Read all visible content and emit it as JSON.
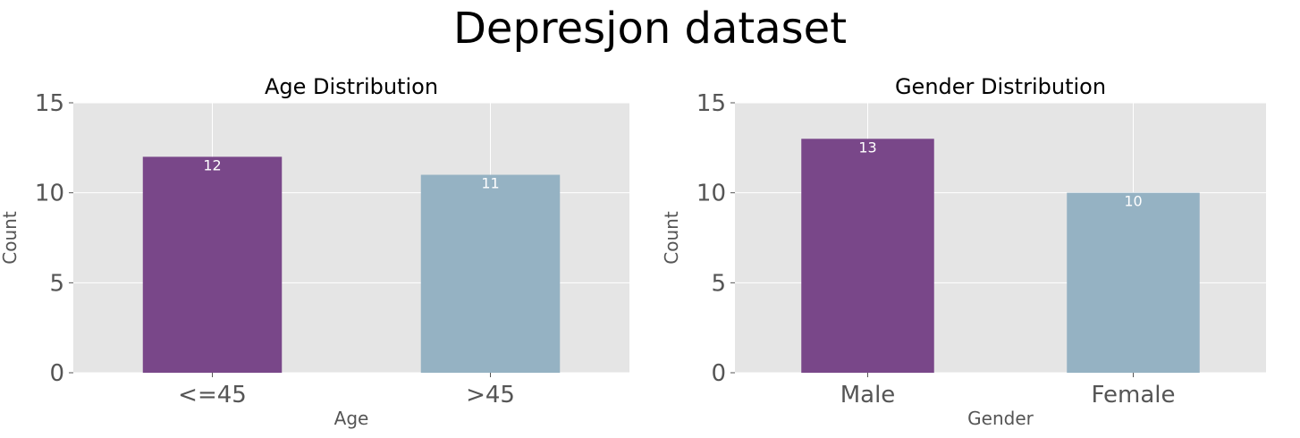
{
  "title": "Depresjon dataset",
  "colors": {
    "bar1": "#794789",
    "bar2": "#95b2c3",
    "panel_bg": "#e5e5e5",
    "grid": "#ffffff",
    "tick_text": "#555555"
  },
  "chart_data": [
    {
      "type": "bar",
      "title": "Age Distribution",
      "xlabel": "Age",
      "ylabel": "Count",
      "categories": [
        "<=45",
        ">45"
      ],
      "values": [
        12,
        11
      ],
      "ylim": [
        0,
        15
      ],
      "yticks": [
        0,
        5,
        10,
        15
      ],
      "grid": true
    },
    {
      "type": "bar",
      "title": "Gender Distribution",
      "xlabel": "Gender",
      "ylabel": "Count",
      "categories": [
        "Male",
        "Female"
      ],
      "values": [
        13,
        10
      ],
      "ylim": [
        0,
        15
      ],
      "yticks": [
        0,
        5,
        10,
        15
      ],
      "grid": true
    }
  ]
}
